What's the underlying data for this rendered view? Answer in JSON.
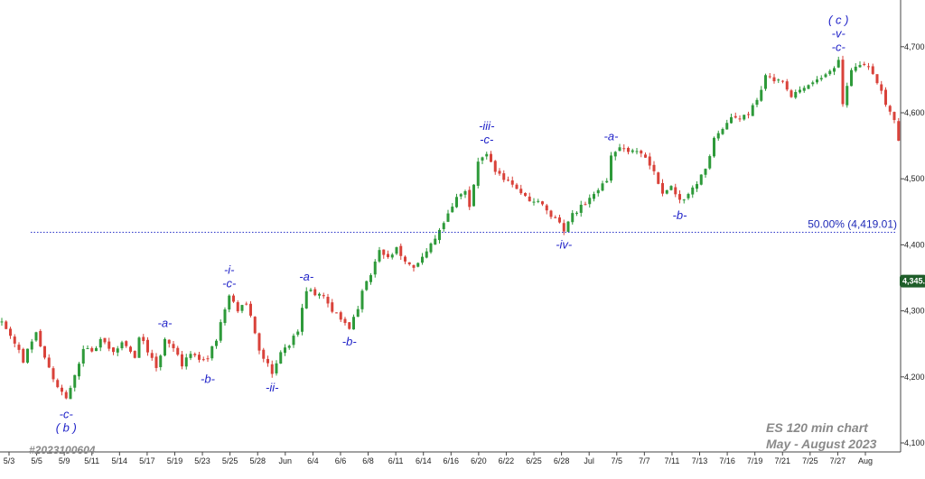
{
  "chart_data": {
    "type": "candlestick",
    "title": "ES 120 min chart",
    "subtitle": "May - August 2023",
    "chart_id": "#2023100604",
    "y_axis": {
      "position": "right",
      "ylim": [
        4080,
        4780
      ],
      "ticks": [
        "4,100.",
        "4,200.",
        "4,300.",
        "4,400.",
        "4,500.",
        "4,600.",
        "4,700."
      ],
      "tick_values": [
        4100,
        4200,
        4300,
        4400,
        4500,
        4600,
        4700
      ]
    },
    "x_axis": {
      "ticks": [
        "5/3",
        "5/5",
        "5/9",
        "5/11",
        "5/14",
        "5/17",
        "5/19",
        "5/23",
        "5/25",
        "5/28",
        "Jun",
        "6/4",
        "6/6",
        "6/8",
        "6/11",
        "6/14",
        "6/16",
        "6/20",
        "6/22",
        "6/25",
        "6/28",
        "Jul",
        "7/5",
        "7/7",
        "7/11",
        "7/13",
        "7/16",
        "7/19",
        "7/21",
        "7/25",
        "7/27",
        "Aug"
      ]
    },
    "last_price": {
      "label": "4,345.",
      "value": 4345
    },
    "fib_level": {
      "label": "50.00% (4,419.01)",
      "value": 4419.01
    },
    "candle_colors": {
      "up": "#2e9a3a",
      "down": "#d9423a"
    },
    "path": [
      {
        "x": 0,
        "y": 4285
      },
      {
        "x": 3,
        "y": 4250
      },
      {
        "x": 5,
        "y": 4225
      },
      {
        "x": 8,
        "y": 4268
      },
      {
        "x": 11,
        "y": 4212
      },
      {
        "x": 13,
        "y": 4185
      },
      {
        "x": 15,
        "y": 4165
      },
      {
        "x": 17,
        "y": 4200
      },
      {
        "x": 19,
        "y": 4245
      },
      {
        "x": 21,
        "y": 4235
      },
      {
        "x": 23,
        "y": 4255
      },
      {
        "x": 26,
        "y": 4240
      },
      {
        "x": 28,
        "y": 4250
      },
      {
        "x": 31,
        "y": 4232
      },
      {
        "x": 32,
        "y": 4262
      },
      {
        "x": 34,
        "y": 4240
      },
      {
        "x": 36,
        "y": 4215
      },
      {
        "x": 38,
        "y": 4255
      },
      {
        "x": 40,
        "y": 4245
      },
      {
        "x": 42,
        "y": 4218
      },
      {
        "x": 44,
        "y": 4238
      },
      {
        "x": 46,
        "y": 4225
      },
      {
        "x": 48,
        "y": 4230
      },
      {
        "x": 50,
        "y": 4258
      },
      {
        "x": 51,
        "y": 4283
      },
      {
        "x": 52,
        "y": 4305
      },
      {
        "x": 53,
        "y": 4322
      },
      {
        "x": 55,
        "y": 4300
      },
      {
        "x": 57,
        "y": 4312
      },
      {
        "x": 58,
        "y": 4290
      },
      {
        "x": 60,
        "y": 4240
      },
      {
        "x": 62,
        "y": 4218
      },
      {
        "x": 63,
        "y": 4205
      },
      {
        "x": 65,
        "y": 4240
      },
      {
        "x": 67,
        "y": 4250
      },
      {
        "x": 69,
        "y": 4272
      },
      {
        "x": 71,
        "y": 4332
      },
      {
        "x": 73,
        "y": 4325
      },
      {
        "x": 75,
        "y": 4320
      },
      {
        "x": 77,
        "y": 4298
      },
      {
        "x": 79,
        "y": 4290
      },
      {
        "x": 81,
        "y": 4275
      },
      {
        "x": 83,
        "y": 4300
      },
      {
        "x": 84,
        "y": 4330
      },
      {
        "x": 86,
        "y": 4355
      },
      {
        "x": 88,
        "y": 4390
      },
      {
        "x": 90,
        "y": 4382
      },
      {
        "x": 92,
        "y": 4395
      },
      {
        "x": 94,
        "y": 4375
      },
      {
        "x": 96,
        "y": 4365
      },
      {
        "x": 98,
        "y": 4385
      },
      {
        "x": 100,
        "y": 4400
      },
      {
        "x": 102,
        "y": 4420
      },
      {
        "x": 104,
        "y": 4450
      },
      {
        "x": 106,
        "y": 4470
      },
      {
        "x": 108,
        "y": 4478
      },
      {
        "x": 109,
        "y": 4460
      },
      {
        "x": 111,
        "y": 4525
      },
      {
        "x": 113,
        "y": 4540
      },
      {
        "x": 115,
        "y": 4510
      },
      {
        "x": 117,
        "y": 4500
      },
      {
        "x": 119,
        "y": 4488
      },
      {
        "x": 121,
        "y": 4480
      },
      {
        "x": 123,
        "y": 4463
      },
      {
        "x": 125,
        "y": 4468
      },
      {
        "x": 127,
        "y": 4450
      },
      {
        "x": 129,
        "y": 4440
      },
      {
        "x": 131,
        "y": 4422
      },
      {
        "x": 133,
        "y": 4445
      },
      {
        "x": 135,
        "y": 4458
      },
      {
        "x": 137,
        "y": 4470
      },
      {
        "x": 139,
        "y": 4480
      },
      {
        "x": 141,
        "y": 4500
      },
      {
        "x": 142,
        "y": 4535
      },
      {
        "x": 144,
        "y": 4545
      },
      {
        "x": 146,
        "y": 4540
      },
      {
        "x": 148,
        "y": 4542
      },
      {
        "x": 150,
        "y": 4530
      },
      {
        "x": 152,
        "y": 4510
      },
      {
        "x": 154,
        "y": 4480
      },
      {
        "x": 156,
        "y": 4490
      },
      {
        "x": 158,
        "y": 4466
      },
      {
        "x": 160,
        "y": 4478
      },
      {
        "x": 162,
        "y": 4495
      },
      {
        "x": 164,
        "y": 4515
      },
      {
        "x": 166,
        "y": 4560
      },
      {
        "x": 168,
        "y": 4575
      },
      {
        "x": 170,
        "y": 4595
      },
      {
        "x": 172,
        "y": 4590
      },
      {
        "x": 174,
        "y": 4598
      },
      {
        "x": 176,
        "y": 4620
      },
      {
        "x": 178,
        "y": 4655
      },
      {
        "x": 180,
        "y": 4650
      },
      {
        "x": 182,
        "y": 4645
      },
      {
        "x": 184,
        "y": 4625
      },
      {
        "x": 186,
        "y": 4632
      },
      {
        "x": 188,
        "y": 4640
      },
      {
        "x": 190,
        "y": 4652
      },
      {
        "x": 192,
        "y": 4660
      },
      {
        "x": 194,
        "y": 4670
      },
      {
        "x": 195,
        "y": 4680
      },
      {
        "x": 196,
        "y": 4612
      },
      {
        "x": 198,
        "y": 4665
      },
      {
        "x": 200,
        "y": 4670
      },
      {
        "x": 202,
        "y": 4668
      },
      {
        "x": 204,
        "y": 4648
      },
      {
        "x": 206,
        "y": 4612
      },
      {
        "x": 208,
        "y": 4590
      },
      {
        "x": 209,
        "y": 4560
      }
    ]
  },
  "wave_labels": [
    {
      "lines": [
        "-c-",
        "( b )"
      ],
      "x": 15,
      "y": 4165,
      "side": "below"
    },
    {
      "lines": [
        "-a-"
      ],
      "x": 38,
      "y": 4262,
      "side": "above"
    },
    {
      "lines": [
        "-b-"
      ],
      "x": 48,
      "y": 4218,
      "side": "below"
    },
    {
      "lines": [
        "-i-",
        "-c-"
      ],
      "x": 53,
      "y": 4322,
      "side": "above"
    },
    {
      "lines": [
        "-ii-"
      ],
      "x": 63,
      "y": 4205,
      "side": "below"
    },
    {
      "lines": [
        "-a-"
      ],
      "x": 71,
      "y": 4332,
      "side": "above"
    },
    {
      "lines": [
        "-b-"
      ],
      "x": 81,
      "y": 4275,
      "side": "below"
    },
    {
      "lines": [
        "-iii-",
        "-c-"
      ],
      "x": 113,
      "y": 4540,
      "side": "above"
    },
    {
      "lines": [
        "-iv-"
      ],
      "x": 131,
      "y": 4422,
      "side": "below"
    },
    {
      "lines": [
        "-a-"
      ],
      "x": 142,
      "y": 4545,
      "side": "above"
    },
    {
      "lines": [
        "-b-"
      ],
      "x": 158,
      "y": 4466,
      "side": "below"
    },
    {
      "lines": [
        "( c )",
        "-v-",
        "-c-"
      ],
      "x": 195,
      "y": 4680,
      "side": "above"
    }
  ]
}
